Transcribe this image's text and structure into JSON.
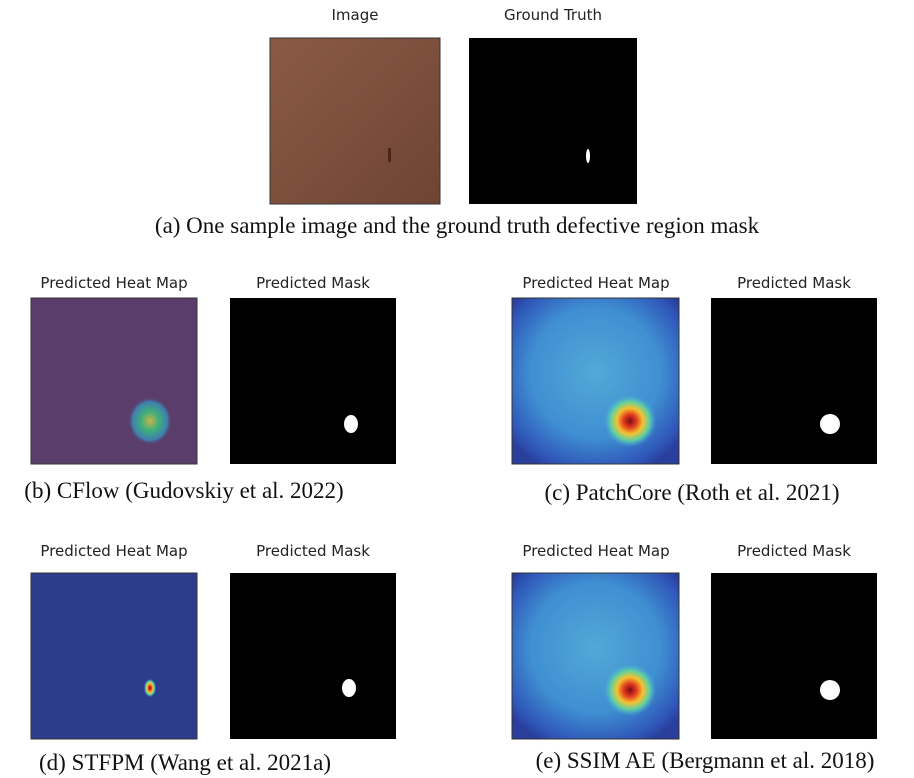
{
  "panels": [
    {
      "images": [
        {
          "title": "Image"
        },
        {
          "title": "Ground Truth"
        }
      ],
      "caption": "(a) One sample image and the ground truth defective region mask"
    },
    {
      "images": [
        {
          "title": "Predicted Heat Map"
        },
        {
          "title": "Predicted Mask"
        }
      ],
      "caption": "(b) CFlow (Gudovskiy et al. 2022)"
    },
    {
      "images": [
        {
          "title": "Predicted Heat Map"
        },
        {
          "title": "Predicted Mask"
        }
      ],
      "caption": "(c) PatchCore (Roth et al. 2021)"
    },
    {
      "images": [
        {
          "title": "Predicted Heat Map"
        },
        {
          "title": "Predicted Mask"
        }
      ],
      "caption": "(d) STFPM (Wang et al. 2021a)"
    },
    {
      "images": [
        {
          "title": "Predicted Heat Map"
        },
        {
          "title": "Predicted Mask"
        }
      ],
      "caption": "(e) SSIM AE (Bergmann et al. 2018)"
    }
  ]
}
